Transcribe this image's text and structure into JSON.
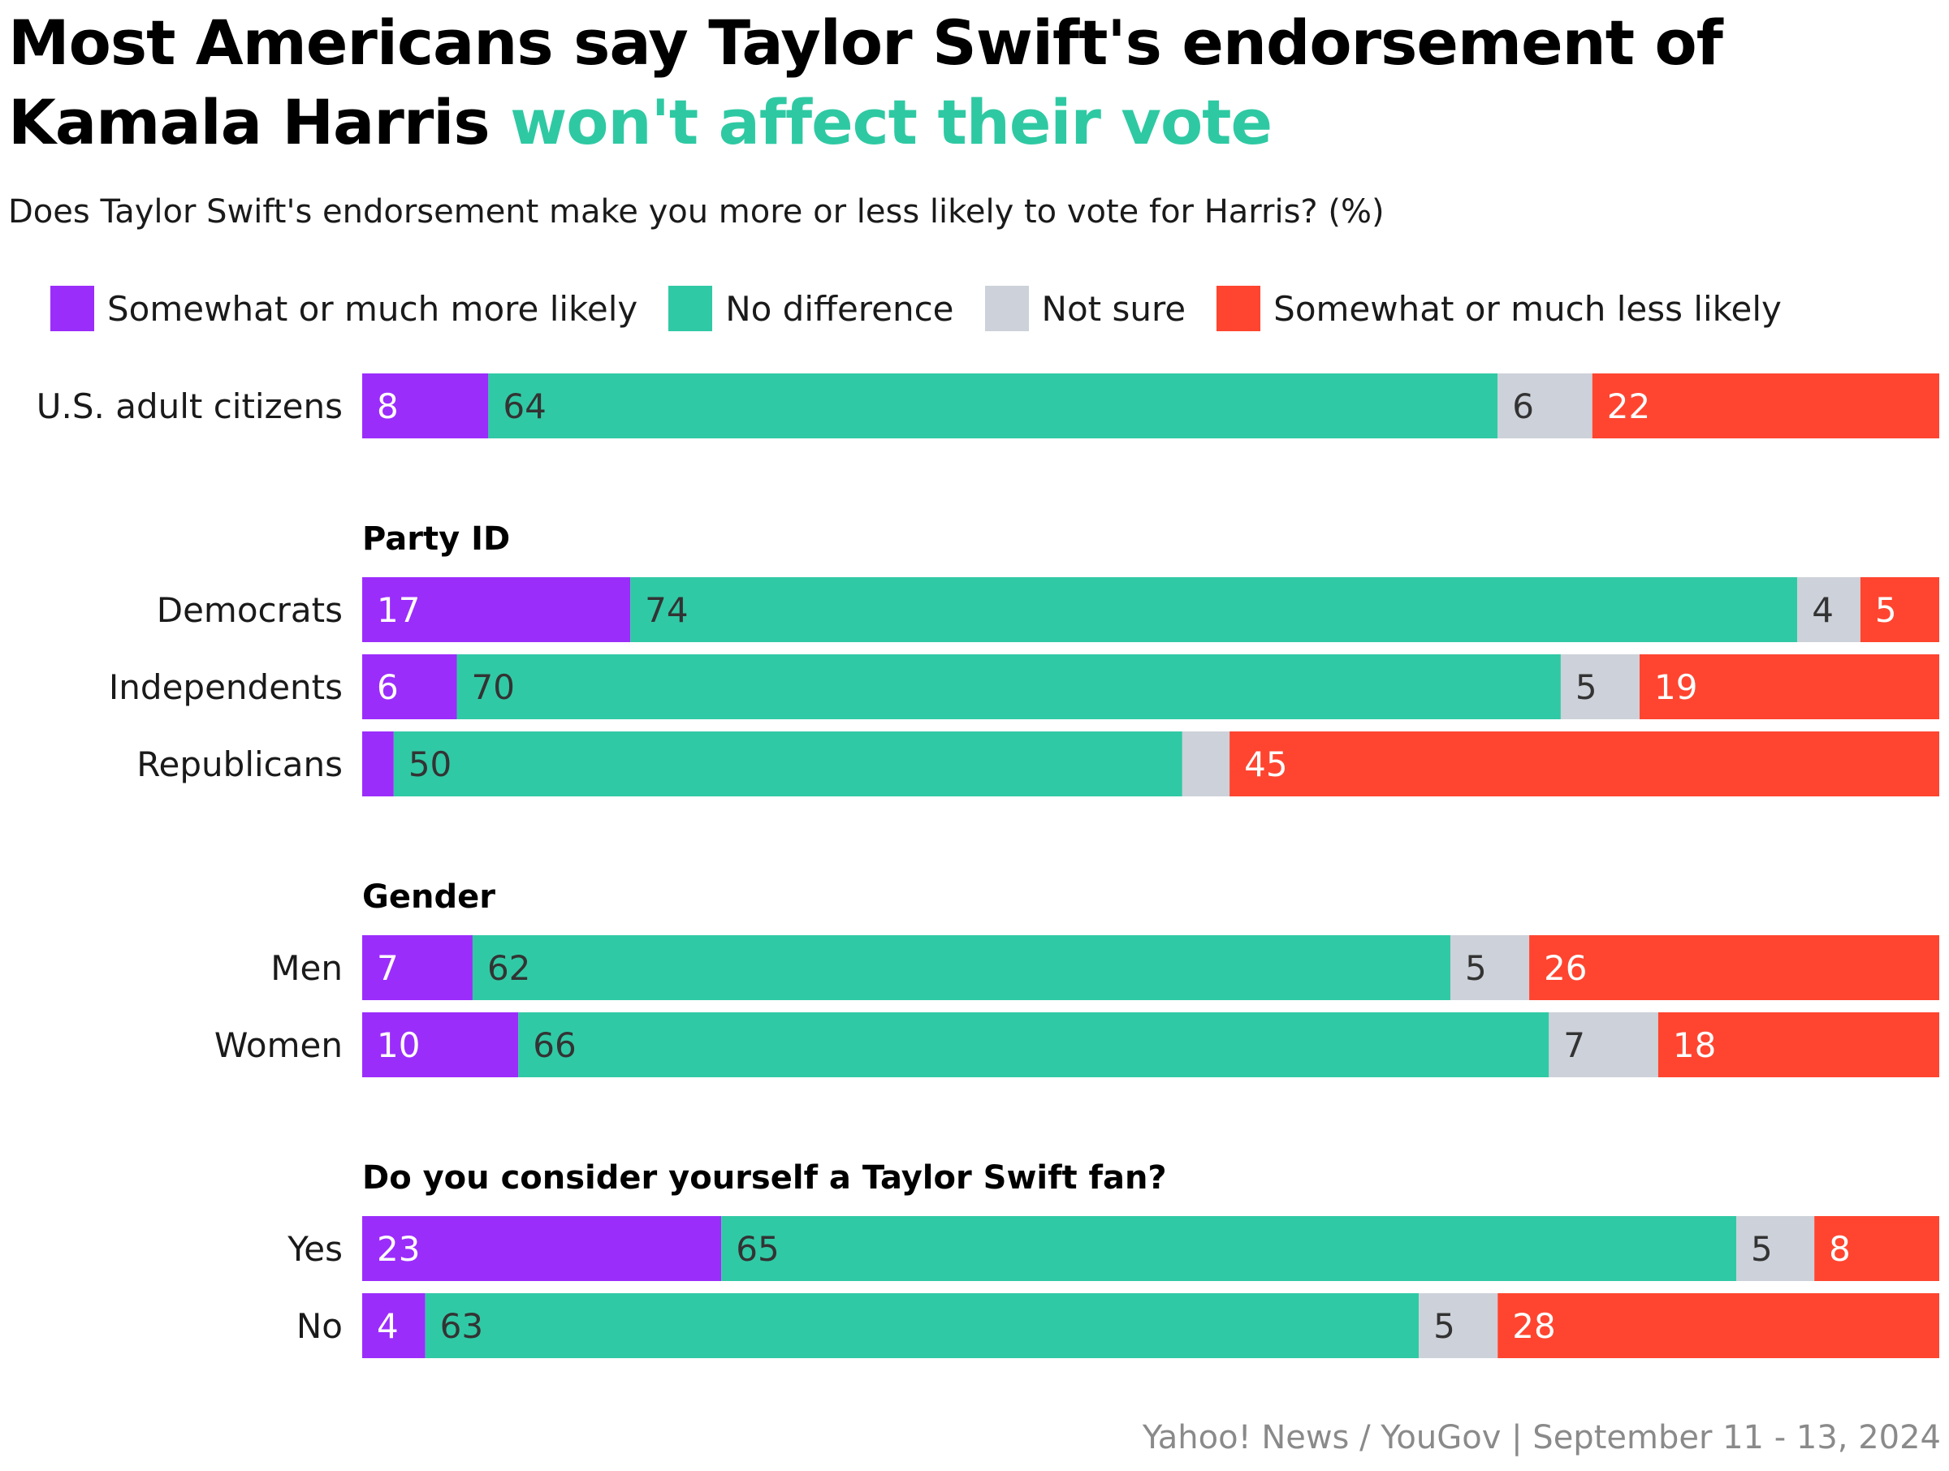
{
  "title": {
    "main": "Most Americans say Taylor Swift's endorsement of Kamala Harris",
    "accent": "won't affect their vote"
  },
  "subtitle": "Does Taylor Swift's endorsement make you more or less likely to vote for Harris? (%)",
  "source": "Yahoo! News / YouGov | September 11 - 13, 2024",
  "colors": {
    "more_likely": "#9b2dfb",
    "no_difference": "#30c9a5",
    "not_sure": "#cdd1d9",
    "less_likely": "#ff4530",
    "accent": "#2ec9a3"
  },
  "chart_data": {
    "type": "bar",
    "orientation": "horizontal",
    "stacked": true,
    "xlim": [
      0,
      100
    ],
    "series": [
      {
        "name": "Somewhat or much more likely",
        "key": "more_likely",
        "color": "#9b2dfb"
      },
      {
        "name": "No difference",
        "key": "no_difference",
        "color": "#30c9a5"
      },
      {
        "name": "Not sure",
        "key": "not_sure",
        "color": "#cdd1d9"
      },
      {
        "name": "Somewhat or much less likely",
        "key": "less_likely",
        "color": "#ff4530"
      }
    ],
    "groups": [
      {
        "name": "",
        "rows": [
          {
            "label": "U.S. adult citizens",
            "values": [
              8,
              64,
              6,
              22
            ],
            "labels": [
              "8",
              "64",
              "6",
              "22"
            ]
          }
        ]
      },
      {
        "name": "Party ID",
        "rows": [
          {
            "label": "Democrats",
            "values": [
              17,
              74,
              4,
              5
            ],
            "labels": [
              "17",
              "74",
              "4",
              "5"
            ]
          },
          {
            "label": "Independents",
            "values": [
              6,
              70,
              5,
              19
            ],
            "labels": [
              "6",
              "70",
              "5",
              "19"
            ]
          },
          {
            "label": "Republicans",
            "values": [
              2,
              50,
              3,
              45
            ],
            "labels": [
              "",
              "50",
              "",
              "45"
            ]
          }
        ]
      },
      {
        "name": "Gender",
        "rows": [
          {
            "label": "Men",
            "values": [
              7,
              62,
              5,
              26
            ],
            "labels": [
              "7",
              "62",
              "5",
              "26"
            ]
          },
          {
            "label": "Women",
            "values": [
              10,
              66,
              7,
              18
            ],
            "labels": [
              "10",
              "66",
              "7",
              "18"
            ]
          }
        ]
      },
      {
        "name": "Do you consider yourself a Taylor Swift fan?",
        "rows": [
          {
            "label": "Yes",
            "values": [
              23,
              65,
              5,
              8
            ],
            "labels": [
              "23",
              "65",
              "5",
              "8"
            ]
          },
          {
            "label": "No",
            "values": [
              4,
              63,
              5,
              28
            ],
            "labels": [
              "4",
              "63",
              "5",
              "28"
            ]
          }
        ]
      }
    ]
  }
}
